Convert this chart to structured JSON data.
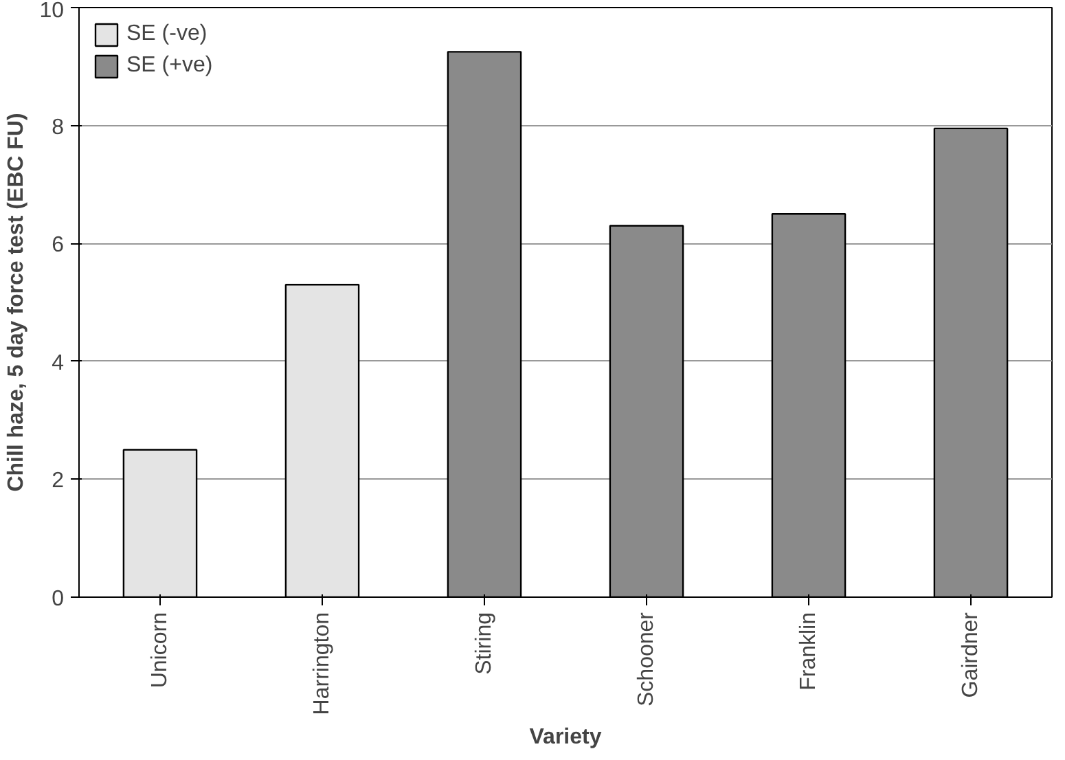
{
  "chart_data": {
    "type": "bar",
    "xlabel": "Variety",
    "ylabel": "Chill haze, 5 day force test (EBC FU)",
    "categories": [
      "Unicorn",
      "Harrington",
      "Stiring",
      "Schooner",
      "Franklin",
      "Gairdner"
    ],
    "series": [
      {
        "name": "SE (-ve)",
        "color": "#e4e4e4",
        "values": [
          2.5,
          5.3,
          null,
          null,
          null,
          null
        ]
      },
      {
        "name": "SE (+ve)",
        "color": "#8a8a8a",
        "values": [
          null,
          null,
          9.25,
          6.3,
          6.5,
          7.95
        ]
      }
    ],
    "ylim": [
      0,
      10
    ],
    "yticks": [
      0,
      2,
      4,
      6,
      8,
      10
    ],
    "grid": "y",
    "legend": "top left"
  }
}
